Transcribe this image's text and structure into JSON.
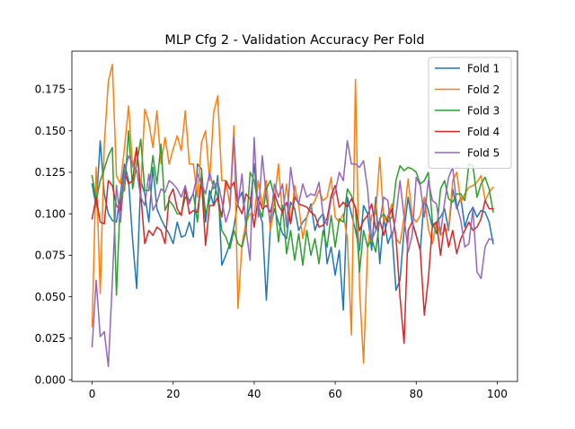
{
  "chart_data": {
    "type": "line",
    "title": "MLP Cfg 2 - Validation Accuracy Per Fold",
    "xlabel": "",
    "ylabel": "",
    "xlim": [
      -5,
      105
    ],
    "ylim": [
      -0.001,
      0.198
    ],
    "xticks": [
      0,
      20,
      40,
      60,
      80,
      100
    ],
    "yticks": [
      0.0,
      0.025,
      0.05,
      0.075,
      0.1,
      0.125,
      0.15,
      0.175
    ],
    "ytick_labels": [
      "0.000",
      "0.025",
      "0.050",
      "0.075",
      "0.100",
      "0.125",
      "0.150",
      "0.175"
    ],
    "legend": "upper-right",
    "grid": false,
    "x": [
      0,
      1,
      2,
      3,
      4,
      5,
      6,
      7,
      8,
      9,
      10,
      11,
      12,
      13,
      14,
      15,
      16,
      17,
      18,
      19,
      20,
      21,
      22,
      23,
      24,
      25,
      26,
      27,
      28,
      29,
      30,
      31,
      32,
      33,
      34,
      35,
      36,
      37,
      38,
      39,
      40,
      41,
      42,
      43,
      44,
      45,
      46,
      47,
      48,
      49,
      50,
      51,
      52,
      53,
      54,
      55,
      56,
      57,
      58,
      59,
      60,
      61,
      62,
      63,
      64,
      65,
      66,
      67,
      68,
      69,
      70,
      71,
      72,
      73,
      74,
      75,
      76,
      77,
      78,
      79,
      80,
      81,
      82,
      83,
      84,
      85,
      86,
      87,
      88,
      89,
      90,
      91,
      92,
      93,
      94,
      95,
      96,
      97,
      98,
      99
    ],
    "series": [
      {
        "name": "Fold 1",
        "color": "#1f77b4",
        "values": [
          0.118,
          0.104,
          0.144,
          0.112,
          0.1,
          0.096,
          0.095,
          0.112,
          0.13,
          0.12,
          0.084,
          0.055,
          0.12,
          0.112,
          0.095,
          0.128,
          0.103,
          0.097,
          0.092,
          0.088,
          0.082,
          0.095,
          0.086,
          0.087,
          0.095,
          0.086,
          0.13,
          0.127,
          0.095,
          0.114,
          0.105,
          0.123,
          0.069,
          0.075,
          0.082,
          0.092,
          0.108,
          0.113,
          0.095,
          0.105,
          0.13,
          0.102,
          0.095,
          0.048,
          0.092,
          0.103,
          0.095,
          0.088,
          0.085,
          0.107,
          0.103,
          0.09,
          0.095,
          0.098,
          0.106,
          0.09,
          0.097,
          0.1,
          0.07,
          0.08,
          0.063,
          0.078,
          0.042,
          0.11,
          0.1,
          0.09,
          0.078,
          0.105,
          0.1,
          0.078,
          0.11,
          0.07,
          0.098,
          0.082,
          0.089,
          0.054,
          0.06,
          0.09,
          0.11,
          0.095,
          0.087,
          0.078,
          0.11,
          0.102,
          0.092,
          0.095,
          0.098,
          0.103,
          0.09,
          0.115,
          0.103,
          0.11,
          0.092,
          0.1,
          0.104,
          0.098,
          0.102,
          0.101,
          0.095,
          0.082
        ]
      },
      {
        "name": "Fold 2",
        "color": "#ff7f0e",
        "values": [
          0.032,
          0.128,
          0.052,
          0.142,
          0.18,
          0.19,
          0.123,
          0.118,
          0.14,
          0.165,
          0.128,
          0.14,
          0.115,
          0.163,
          0.155,
          0.14,
          0.162,
          0.13,
          0.146,
          0.13,
          0.139,
          0.147,
          0.138,
          0.162,
          0.13,
          0.13,
          0.11,
          0.143,
          0.15,
          0.12,
          0.161,
          0.171,
          0.12,
          0.12,
          0.105,
          0.153,
          0.043,
          0.082,
          0.095,
          0.1,
          0.099,
          0.12,
          0.105,
          0.12,
          0.09,
          0.108,
          0.13,
          0.099,
          0.118,
          0.094,
          0.117,
          0.105,
          0.085,
          0.098,
          0.104,
          0.108,
          0.114,
          0.108,
          0.11,
          0.122,
          0.098,
          0.095,
          0.1,
          0.085,
          0.027,
          0.181,
          0.055,
          0.01,
          0.079,
          0.099,
          0.1,
          0.134,
          0.095,
          0.099,
          0.106,
          0.085,
          0.082,
          0.098,
          0.121,
          0.099,
          0.095,
          0.099,
          0.11,
          0.091,
          0.082,
          0.095,
          0.087,
          0.09,
          0.091,
          0.12,
          0.125,
          0.107,
          0.112,
          0.116,
          0.117,
          0.119,
          0.123,
          0.108,
          0.113,
          0.116
        ]
      },
      {
        "name": "Fold 3",
        "color": "#2ca02c",
        "values": [
          0.123,
          0.108,
          0.12,
          0.127,
          0.135,
          0.14,
          0.051,
          0.112,
          0.114,
          0.15,
          0.115,
          0.13,
          0.145,
          0.114,
          0.114,
          0.135,
          0.118,
          0.142,
          0.102,
          0.108,
          0.105,
          0.1,
          0.1,
          0.11,
          0.108,
          0.112,
          0.095,
          0.125,
          0.1,
          0.108,
          0.12,
          0.11,
          0.09,
          0.086,
          0.079,
          0.09,
          0.082,
          0.08,
          0.09,
          0.125,
          0.12,
          0.105,
          0.098,
          0.115,
          0.12,
          0.11,
          0.083,
          0.105,
          0.076,
          0.09,
          0.072,
          0.088,
          0.069,
          0.09,
          0.075,
          0.085,
          0.07,
          0.09,
          0.08,
          0.099,
          0.08,
          0.097,
          0.095,
          0.115,
          0.111,
          0.103,
          0.065,
          0.09,
          0.08,
          0.085,
          0.077,
          0.097,
          0.1,
          0.095,
          0.098,
          0.12,
          0.129,
          0.126,
          0.128,
          0.127,
          0.125,
          0.118,
          0.12,
          0.125,
          0.095,
          0.088,
          0.115,
          0.12,
          0.109,
          0.107,
          0.112,
          0.112,
          0.108,
          0.13,
          0.129,
          0.11,
          0.118,
          0.122,
          0.115,
          0.101
        ]
      },
      {
        "name": "Fold 4",
        "color": "#d62728",
        "values": [
          0.097,
          0.11,
          0.095,
          0.094,
          0.12,
          0.117,
          0.105,
          0.102,
          0.125,
          0.118,
          0.12,
          0.14,
          0.112,
          0.082,
          0.09,
          0.087,
          0.092,
          0.09,
          0.082,
          0.11,
          0.115,
          0.103,
          0.099,
          0.115,
          0.1,
          0.102,
          0.101,
          0.12,
          0.081,
          0.105,
          0.105,
          0.11,
          0.098,
          0.12,
          0.115,
          0.119,
          0.105,
          0.1,
          0.112,
          0.109,
          0.092,
          0.11,
          0.103,
          0.105,
          0.101,
          0.112,
          0.105,
          0.101,
          0.107,
          0.094,
          0.11,
          0.106,
          0.105,
          0.104,
          0.101,
          0.099,
          0.092,
          0.093,
          0.097,
          0.111,
          0.117,
          0.104,
          0.107,
          0.104,
          0.109,
          0.104,
          0.09,
          0.096,
          0.099,
          0.106,
          0.091,
          0.096,
          0.087,
          0.097,
          0.103,
          0.086,
          0.05,
          0.022,
          0.09,
          0.095,
          0.087,
          0.078,
          0.039,
          0.061,
          0.093,
          0.095,
          0.075,
          0.094,
          0.08,
          0.09,
          0.076,
          0.085,
          0.09,
          0.095,
          0.09,
          0.092,
          0.097,
          0.108,
          0.103,
          0.103
        ]
      },
      {
        "name": "Fold 5",
        "color": "#9467bd",
        "values": [
          0.02,
          0.06,
          0.026,
          0.029,
          0.008,
          0.06,
          0.117,
          0.095,
          0.125,
          0.135,
          0.13,
          0.126,
          0.11,
          0.105,
          0.124,
          0.102,
          0.107,
          0.115,
          0.113,
          0.12,
          0.118,
          0.115,
          0.11,
          0.117,
          0.106,
          0.113,
          0.124,
          0.118,
          0.112,
          0.125,
          0.115,
          0.12,
          0.108,
          0.095,
          0.103,
          0.146,
          0.105,
          0.124,
          0.09,
          0.072,
          0.146,
          0.098,
          0.135,
          0.11,
          0.095,
          0.118,
          0.11,
          0.118,
          0.092,
          0.128,
          0.111,
          0.106,
          0.118,
          0.11,
          0.112,
          0.111,
          0.119,
          0.1,
          0.093,
          0.109,
          0.113,
          0.125,
          0.12,
          0.144,
          0.13,
          0.13,
          0.128,
          0.132,
          0.115,
          0.084,
          0.09,
          0.095,
          0.11,
          0.108,
          0.085,
          0.099,
          0.12,
          0.098,
          0.077,
          0.087,
          0.122,
          0.117,
          0.098,
          0.12,
          0.108,
          0.106,
          0.088,
          0.107,
          0.122,
          0.128,
          0.105,
          0.096,
          0.08,
          0.082,
          0.103,
          0.065,
          0.061,
          0.08,
          0.085,
          0.084
        ]
      }
    ]
  }
}
